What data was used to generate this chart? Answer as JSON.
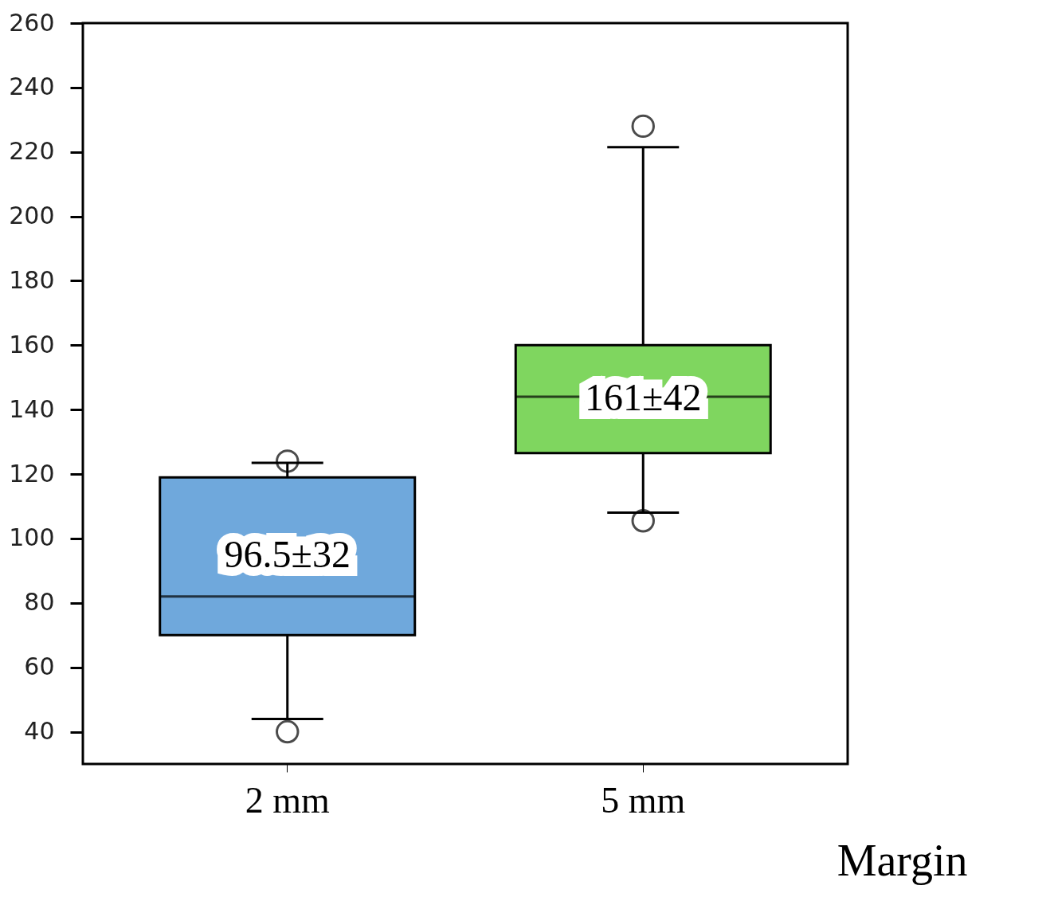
{
  "chart_data": {
    "type": "box",
    "xlabel": "Margin",
    "categories": [
      "2 mm",
      "5 mm"
    ],
    "boxes": [
      {
        "low": 44,
        "q1": 70,
        "median": 82,
        "q3": 119,
        "high": 123.5,
        "outliers": [
          124,
          40
        ]
      },
      {
        "low": 108,
        "q1": 126.5,
        "median": 144,
        "q3": 160,
        "high": 221.5,
        "outliers": [
          228,
          105.5
        ]
      }
    ],
    "colors": [
      "#6fa8dc",
      "#7fd65f"
    ],
    "ylim": [
      30,
      260
    ],
    "yticks": [
      40,
      60,
      80,
      100,
      120,
      140,
      160,
      180,
      200,
      220,
      240,
      260
    ],
    "grid": false,
    "annotations": [
      "96.5±32",
      "161±42"
    ]
  }
}
